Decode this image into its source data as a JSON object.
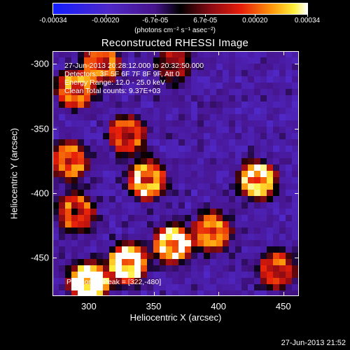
{
  "colorbar": {
    "tick_labels": [
      "-0.00034",
      "-0.00020",
      "-6.7e-05",
      "6.7e-05",
      "0.00020",
      "0.00034"
    ],
    "tick_values": [
      -0.00034,
      -0.0002,
      -6.7e-05,
      6.7e-05,
      0.0002,
      0.00034
    ],
    "units": "(photons cm⁻² s⁻¹ asec⁻²)",
    "range": [
      -0.00034,
      0.00034
    ]
  },
  "title": "Reconstructed RHESSI Image",
  "info": {
    "time": "27-Jun-2013 20:28:12.000 to 20:32:50.000",
    "detectors": "Detectors: 3F 5F 6F 7F 8F 9F, Att 0",
    "energy": "Energy Range: 12.0 - 25.0 keV",
    "clean": "Clean     Total counts: 9.37E+03"
  },
  "peak": "Position of Peak = [322,-480]",
  "timestamp": "27-Jun-2013 21:52",
  "axes": {
    "xlabel": "Heliocentric X (arcsec)",
    "ylabel": "Heliocentric Y (arcsec)",
    "xticks": [
      "300",
      "350",
      "400",
      "450"
    ],
    "yticks": [
      "-300",
      "-350",
      "-400",
      "-450"
    ],
    "xlim": [
      272,
      462
    ],
    "ylim": [
      -480,
      -290
    ]
  },
  "chart_data": {
    "type": "heatmap",
    "title": "Reconstructed RHESSI Image",
    "xlabel": "Heliocentric X (arcsec)",
    "ylabel": "Heliocentric Y (arcsec)",
    "xlim": [
      272,
      462
    ],
    "ylim": [
      -480,
      -290
    ],
    "color_range": [
      -0.00034,
      0.00034
    ],
    "colormap": "blue-purple-red-yellow-white",
    "peak_position": [
      322,
      -480
    ],
    "bright_regions": [
      {
        "x": 300,
        "y": -470,
        "level": 1.0
      },
      {
        "x": 330,
        "y": -455,
        "level": 0.85
      },
      {
        "x": 365,
        "y": -440,
        "level": 0.75
      },
      {
        "x": 345,
        "y": -390,
        "level": 0.7
      },
      {
        "x": 395,
        "y": -430,
        "level": 0.6
      },
      {
        "x": 430,
        "y": -390,
        "level": 0.75
      },
      {
        "x": 290,
        "y": -320,
        "level": 0.6
      },
      {
        "x": 310,
        "y": -300,
        "level": 0.55
      },
      {
        "x": 330,
        "y": -355,
        "level": 0.5
      },
      {
        "x": 285,
        "y": -375,
        "level": 0.55
      },
      {
        "x": 290,
        "y": -415,
        "level": 0.55
      },
      {
        "x": 365,
        "y": -300,
        "level": 0.35
      },
      {
        "x": 445,
        "y": -460,
        "level": 0.5
      }
    ]
  }
}
